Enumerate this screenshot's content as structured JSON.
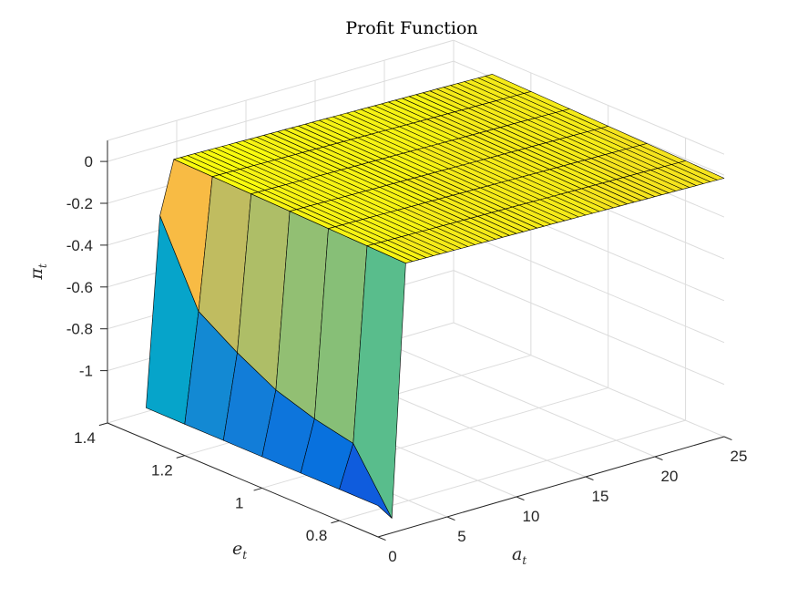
{
  "chart_data": {
    "type": "surface",
    "title": "Profit Function",
    "xlabel": "a",
    "xlabel_sub": "t",
    "ylabel": "e",
    "ylabel_sub": "t",
    "zlabel": "π",
    "zlabel_sub": "t",
    "x_ticks": [
      "0",
      "5",
      "10",
      "15",
      "20",
      "25"
    ],
    "y_ticks": [
      "0.8",
      "1",
      "1.2",
      "1.4"
    ],
    "z_ticks": [
      "0",
      "-0.2",
      "-0.4",
      "-0.6",
      "-0.8",
      "-1"
    ],
    "xlim": [
      0,
      25
    ],
    "ylim": [
      0.7,
      1.4
    ],
    "zlim": [
      -1.25,
      0.1
    ],
    "grid": true,
    "colormap": "parula",
    "e_values": [
      1.3,
      1.2,
      1.1,
      1.0,
      0.9,
      0.8,
      0.7
    ],
    "profit_at_a0": [
      -1.1,
      -1.1,
      -1.1,
      -1.1,
      -1.1,
      -1.1,
      -1.1
    ],
    "profit_at_a1": [
      -0.2,
      -0.58,
      -0.7,
      -0.8,
      -0.86,
      -0.9,
      -1.18
    ],
    "profit_peak_a": 2,
    "profit_peak_value": 0.05,
    "profit_slope_per_unit_a": -0.0015
  }
}
